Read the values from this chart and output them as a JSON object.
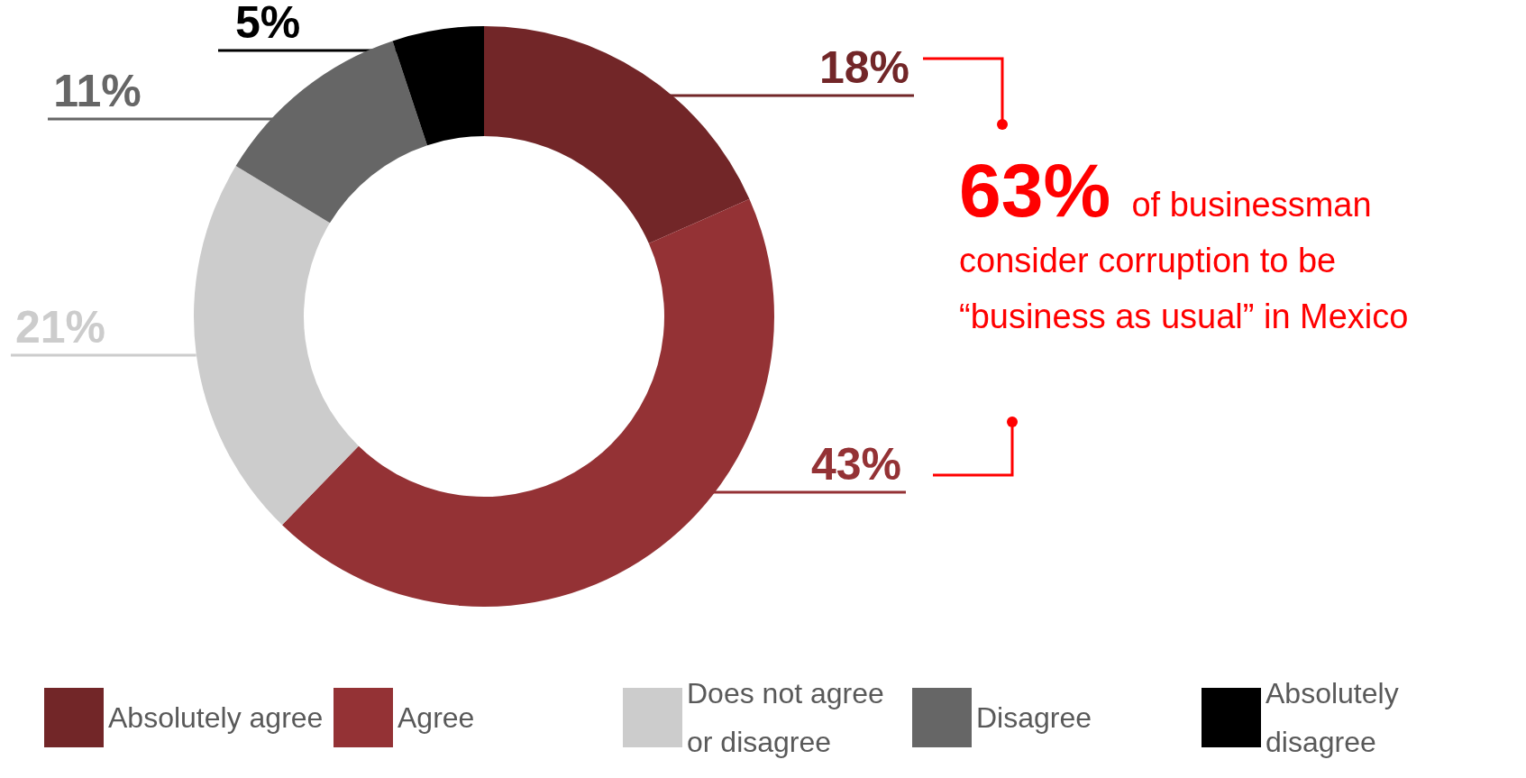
{
  "chart_data": {
    "type": "donut",
    "categories": [
      "Absolutely agree",
      "Agree",
      "Does not agree or disagree",
      "Disagree",
      "Absolutely disagree"
    ],
    "values": [
      18,
      43,
      21,
      11,
      5
    ],
    "value_labels": [
      "18%",
      "43%",
      "21%",
      "11%",
      "5%"
    ],
    "colors": [
      "#722628",
      "#943235",
      "#cccccc",
      "#666666",
      "#000000"
    ],
    "annotations": [
      "63% of businessman consider corruption to be “business as usual” in Mexico"
    ],
    "legend": "bottom"
  }
}
